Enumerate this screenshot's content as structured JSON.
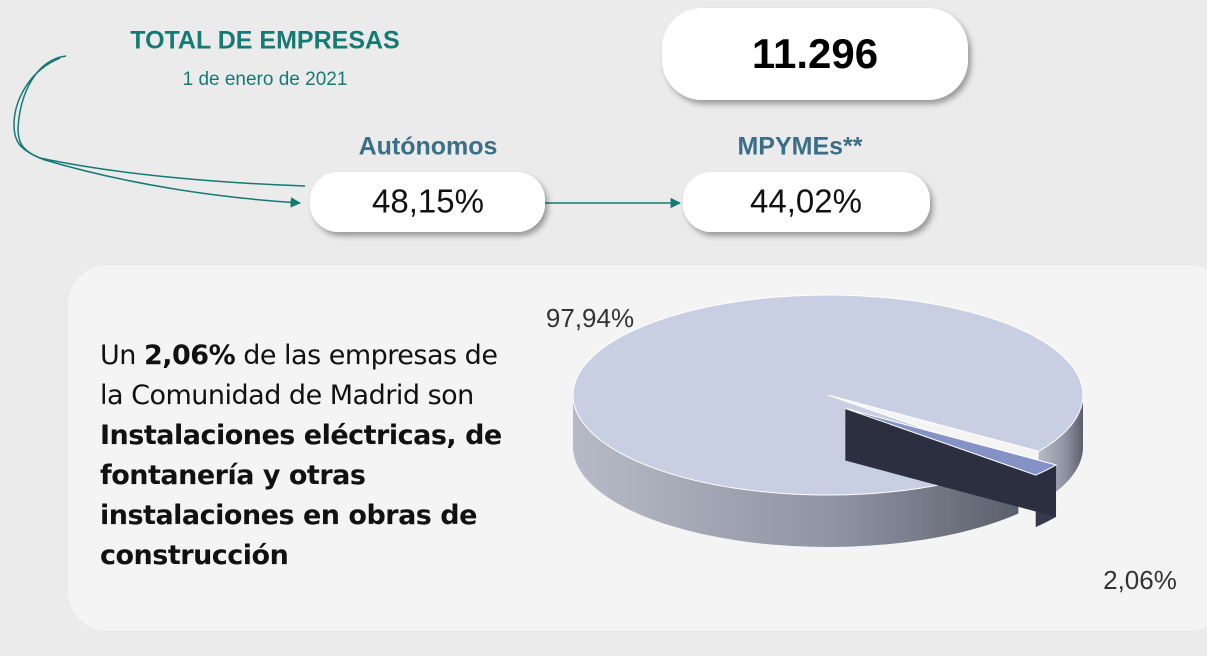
{
  "header": {
    "title": "TOTAL DE EMPRESAS",
    "date": "1 de enero de 2021",
    "total": "11.296"
  },
  "stats": [
    {
      "label": "Autónomos",
      "value": "48,15%"
    },
    {
      "label": "MPYMEs**",
      "value": "44,02%"
    }
  ],
  "description": [
    {
      "text": "Un ",
      "bold": false
    },
    {
      "text": "2,06%",
      "bold": true
    },
    {
      "text": " de las empresas de la Comunidad de Madrid son ",
      "bold": false
    },
    {
      "text": "Instalaciones eléctricas, de fontanería y otras instalaciones en obras de construcción",
      "bold": true
    }
  ],
  "chart_data": {
    "type": "pie",
    "values": [
      97.94,
      2.06
    ],
    "value_labels": [
      "97,94%",
      "2,06%"
    ],
    "colors": [
      "#c9cfe3",
      "#8592c6"
    ],
    "side_colors": [
      "#7b7f8e",
      "#34394e"
    ]
  }
}
